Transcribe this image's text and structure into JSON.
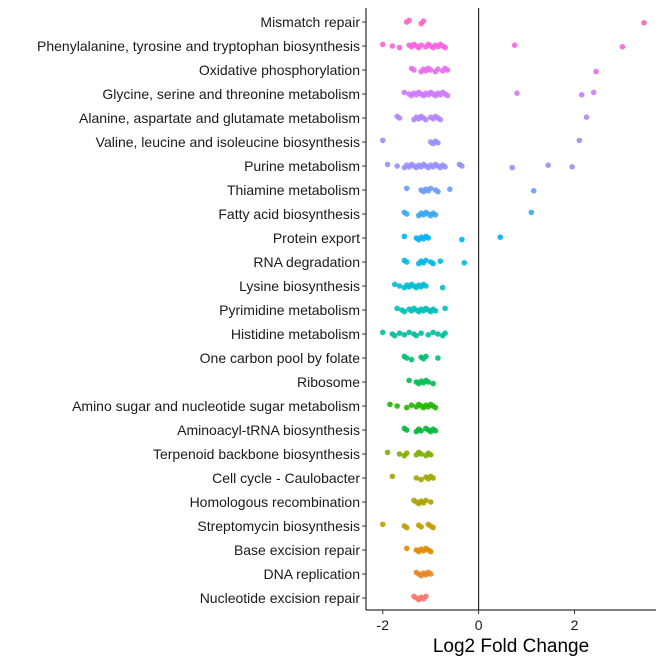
{
  "chart_data": {
    "type": "scatter",
    "xlabel": "Log2 Fold Change",
    "ylabel": "",
    "xlim": [
      -2.35,
      3.7
    ],
    "xticks": [
      -2,
      0,
      2
    ],
    "reference_line_x": 0,
    "grid": false,
    "legend": "none",
    "categories": [
      "Mismatch repair",
      "Phenylalanine, tyrosine and tryptophan biosynthesis",
      "Oxidative phosphorylation",
      "Glycine, serine and threonine metabolism",
      "Alanine, aspartate and glutamate metabolism",
      "Valine, leucine and isoleucine biosynthesis",
      "Purine metabolism",
      "Thiamine metabolism",
      "Fatty acid biosynthesis",
      "Protein export",
      "RNA degradation",
      "Lysine biosynthesis",
      "Pyrimidine metabolism",
      "Histidine metabolism",
      "One carbon pool by folate",
      "Ribosome",
      "Amino sugar and nucleotide sugar metabolism",
      "Aminoacyl-tRNA biosynthesis",
      "Terpenoid backbone biosynthesis",
      "Cell cycle - Caulobacter",
      "Homologous recombination",
      "Streptomycin biosynthesis",
      "Base excision repair",
      "DNA replication",
      "Nucleotide excision repair"
    ],
    "colors": [
      "#FF61C3",
      "#F863DF",
      "#E76BF3",
      "#CE79FF",
      "#B385FF",
      "#9590FF",
      "#9590FF",
      "#6B9AF5",
      "#39A9F0",
      "#00B0F6",
      "#00B8E7",
      "#00BDD0",
      "#00C0B8",
      "#00BF9C",
      "#00BE70",
      "#00BC52",
      "#24B700",
      "#00BA38",
      "#7CAE00",
      "#A3A500",
      "#ABA300",
      "#C09B00",
      "#DE8C00",
      "#E88526",
      "#F8766D"
    ],
    "series": [
      {
        "values": [
          -1.45,
          -1.5,
          -1.2,
          -1.15,
          3.45
        ]
      },
      {
        "values": [
          -2.0,
          -1.8,
          -1.65,
          -1.45,
          -1.4,
          -1.35,
          -1.3,
          -1.25,
          -1.2,
          -1.1,
          -1.05,
          -1.0,
          -0.95,
          -0.9,
          -0.85,
          -0.8,
          -0.75,
          -0.7,
          0.75,
          3.0
        ]
      },
      {
        "values": [
          -1.4,
          -1.35,
          -1.2,
          -1.15,
          -1.1,
          -1.05,
          -1.0,
          -0.9,
          -0.85,
          -0.75,
          -0.7,
          -0.65,
          2.45
        ]
      },
      {
        "values": [
          -1.55,
          -1.45,
          -1.4,
          -1.35,
          -1.3,
          -1.25,
          -1.2,
          -1.15,
          -1.1,
          -1.05,
          -1.0,
          -0.95,
          -0.9,
          -0.85,
          -0.8,
          -0.75,
          -0.7,
          -0.65,
          0.8,
          2.15,
          2.4
        ]
      },
      {
        "values": [
          -1.7,
          -1.65,
          -1.35,
          -1.3,
          -1.25,
          -1.2,
          -1.15,
          -1.1,
          -1.0,
          -0.95,
          -0.9,
          -0.85,
          -0.8,
          2.25
        ]
      },
      {
        "values": [
          -2.0,
          -1.0,
          -0.95,
          -0.9,
          -0.85,
          2.1
        ]
      },
      {
        "values": [
          -1.9,
          -1.7,
          -1.55,
          -1.5,
          -1.45,
          -1.4,
          -1.35,
          -1.3,
          -1.25,
          -1.2,
          -1.15,
          -1.1,
          -1.05,
          -1.0,
          -0.95,
          -0.9,
          -0.85,
          -0.8,
          -0.75,
          -0.7,
          -0.4,
          -0.35,
          0.7,
          1.45,
          1.95
        ]
      },
      {
        "values": [
          -1.5,
          -1.2,
          -1.15,
          -1.1,
          -1.05,
          -1.0,
          -0.9,
          -0.85,
          -0.6,
          1.15
        ]
      },
      {
        "values": [
          -1.55,
          -1.5,
          -1.25,
          -1.2,
          -1.15,
          -1.1,
          -1.05,
          -1.0,
          -0.95,
          -0.9,
          1.1
        ]
      },
      {
        "values": [
          -1.55,
          -1.3,
          -1.25,
          -1.2,
          -1.15,
          -1.1,
          -1.05,
          -0.35,
          0.45
        ]
      },
      {
        "values": [
          -1.55,
          -1.5,
          -1.25,
          -1.2,
          -1.15,
          -1.1,
          -1.0,
          -0.95,
          -0.8,
          -0.3
        ]
      },
      {
        "values": [
          -1.75,
          -1.65,
          -1.55,
          -1.5,
          -1.45,
          -1.4,
          -1.35,
          -1.3,
          -1.25,
          -1.2,
          -1.15,
          -1.1,
          -0.75
        ]
      },
      {
        "values": [
          -1.7,
          -1.6,
          -1.55,
          -1.45,
          -1.4,
          -1.35,
          -1.3,
          -1.25,
          -1.2,
          -1.15,
          -1.1,
          -1.05,
          -1.0,
          -0.95,
          -0.9,
          -0.7
        ]
      },
      {
        "values": [
          -2.0,
          -1.8,
          -1.75,
          -1.65,
          -1.55,
          -1.45,
          -1.35,
          -1.3,
          -1.2,
          -1.05,
          -0.95,
          -0.85,
          -0.75,
          -0.7
        ]
      },
      {
        "values": [
          -1.55,
          -1.5,
          -1.4,
          -1.2,
          -1.15,
          -1.1,
          -0.85
        ]
      },
      {
        "values": [
          -1.45,
          -1.3,
          -1.25,
          -1.2,
          -1.15,
          -1.1,
          -1.05,
          -0.95
        ]
      },
      {
        "values": [
          -1.85,
          -1.7,
          -1.5,
          -1.4,
          -1.3,
          -1.25,
          -1.2,
          -1.15,
          -1.1,
          -1.05,
          -1.0,
          -0.95,
          -0.9
        ]
      },
      {
        "values": [
          -1.55,
          -1.5,
          -1.3,
          -1.25,
          -1.2,
          -1.1,
          -1.05,
          -1.0,
          -0.95,
          -0.9
        ]
      },
      {
        "values": [
          -1.9,
          -1.65,
          -1.55,
          -1.5,
          -1.3,
          -1.25,
          -1.2,
          -1.1,
          -1.05,
          -1.0
        ]
      },
      {
        "values": [
          -1.8,
          -1.3,
          -1.2,
          -1.1,
          -1.05,
          -1.0,
          -0.95
        ]
      },
      {
        "values": [
          -1.35,
          -1.3,
          -1.25,
          -1.2,
          -1.15,
          -1.1,
          -1.0
        ]
      },
      {
        "values": [
          -2.0,
          -1.55,
          -1.5,
          -1.25,
          -1.2,
          -1.05,
          -1.0,
          -0.95
        ]
      },
      {
        "values": [
          -1.5,
          -1.3,
          -1.25,
          -1.2,
          -1.15,
          -1.1,
          -1.05,
          -1.0
        ]
      },
      {
        "values": [
          -1.3,
          -1.25,
          -1.2,
          -1.15,
          -1.1,
          -1.05,
          -1.0
        ]
      },
      {
        "values": [
          -1.35,
          -1.3,
          -1.25,
          -1.2,
          -1.15,
          -1.1
        ]
      }
    ]
  }
}
